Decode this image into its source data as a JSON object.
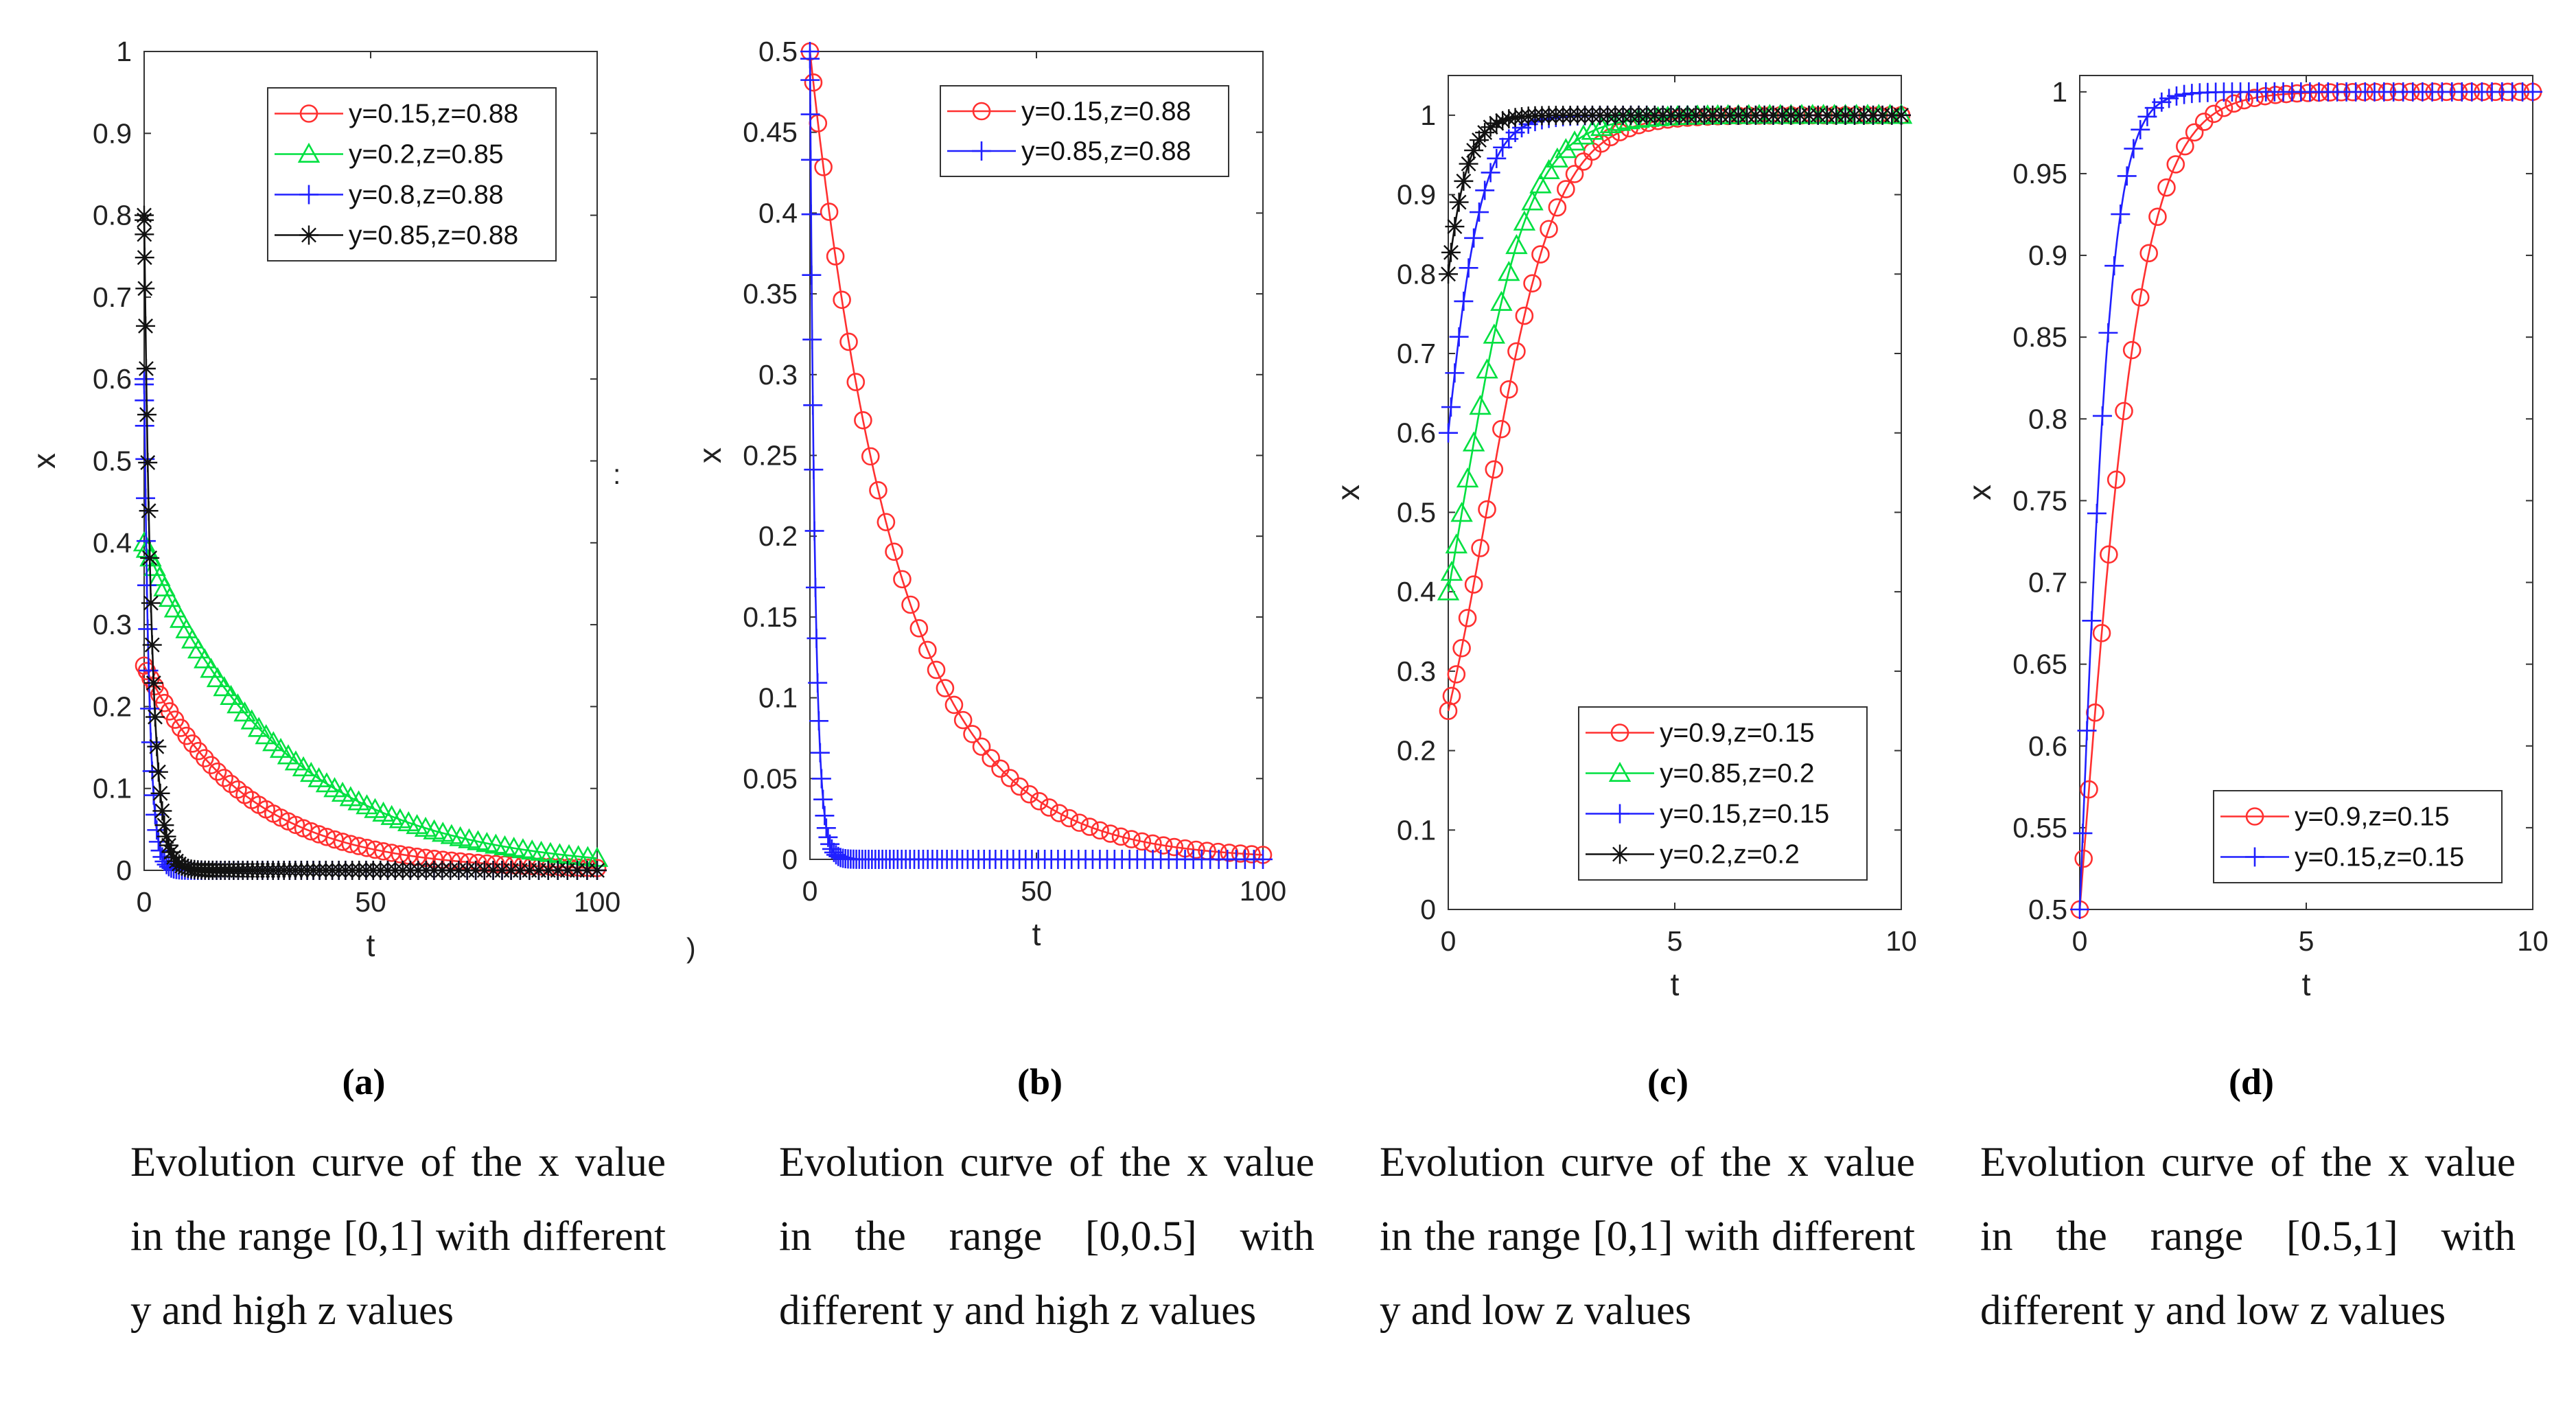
{
  "chart_data": [
    {
      "type": "line",
      "panel_label": "(a)",
      "caption": "Evolution curve of the x value in the range [0,1] with different y and high z values",
      "xlabel": "t",
      "ylabel": "x",
      "xlim": [
        0,
        100
      ],
      "ylim": [
        0,
        1
      ],
      "xticks": [
        0,
        50,
        100
      ],
      "xtick_labels": [
        "0",
        "50",
        "100"
      ],
      "yticks": [
        0,
        0.1,
        0.2,
        0.3,
        0.4,
        0.5,
        0.6,
        0.7,
        0.8,
        0.9,
        1
      ],
      "ytick_labels": [
        "0",
        "0.1",
        "0.2",
        "0.3",
        "0.4",
        "0.5",
        "0.6",
        "0.7",
        "0.8",
        "0.9",
        "1"
      ],
      "legend_position": "top-right",
      "series": [
        {
          "name": "y=0.15,z=0.88",
          "color": "#ff3030",
          "marker": "circle",
          "model": "exp",
          "x0": 0.25,
          "target": 0,
          "rate": 0.045,
          "t_end": 100,
          "n": 60
        },
        {
          "name": "y=0.2,z=0.85",
          "color": "#00e040",
          "marker": "triangle",
          "model": "exp",
          "x0": 0.4,
          "target": 0,
          "rate": 0.033,
          "t_end": 100,
          "n": 60
        },
        {
          "name": "y=0.8,z=0.88",
          "color": "#2020ff",
          "marker": "plus",
          "model": "exp",
          "x0": 0.6,
          "target": 0,
          "rate": 0.9,
          "t_end": 100,
          "n": 90
        },
        {
          "name": "y=0.85,z=0.88",
          "color": "#111111",
          "marker": "star",
          "model": "exp",
          "x0": 0.8,
          "target": 0,
          "rate": 0.6,
          "t_end": 100,
          "n": 90
        }
      ]
    },
    {
      "type": "line",
      "panel_label": "(b)",
      "caption": "Evolution curve of the x value in the range [0,0.5] with different y and high z values",
      "xlabel": "t",
      "ylabel": "x",
      "xlim": [
        0,
        100
      ],
      "ylim": [
        0,
        0.5
      ],
      "xticks": [
        0,
        50,
        100
      ],
      "xtick_labels": [
        "0",
        "50",
        "100"
      ],
      "yticks": [
        0,
        0.05,
        0.1,
        0.15,
        0.2,
        0.25,
        0.3,
        0.35,
        0.4,
        0.45,
        0.5
      ],
      "ytick_labels": [
        "0",
        "0.05",
        "0.1",
        "0.15",
        "0.2",
        "0.25",
        "0.3",
        "0.35",
        "0.4",
        "0.45",
        "0.5"
      ],
      "legend_position": "top-right",
      "series": [
        {
          "name": "y=0.15,z=0.88",
          "color": "#ff3030",
          "marker": "circle",
          "model": "exp",
          "x0": 0.5,
          "target": 0,
          "rate": 0.052,
          "t_end": 100,
          "n": 50
        },
        {
          "name": "y=0.85,z=0.88",
          "color": "#2020ff",
          "marker": "plus",
          "model": "exp",
          "x0": 0.5,
          "target": 0,
          "rate": 0.9,
          "t_end": 100,
          "n": 100
        }
      ]
    },
    {
      "type": "line",
      "panel_label": "(c)",
      "caption": "Evolution curve of the x value in the range [0,1] with different y and low z values",
      "xlabel": "t",
      "ylabel": "x",
      "xlim": [
        0,
        10
      ],
      "ylim": [
        0,
        1.05
      ],
      "xticks": [
        0,
        5,
        10
      ],
      "xtick_labels": [
        "0",
        "5",
        "10"
      ],
      "yticks": [
        0,
        0.1,
        0.2,
        0.3,
        0.4,
        0.5,
        0.6,
        0.7,
        0.8,
        0.9,
        1
      ],
      "ytick_labels": [
        "0",
        "0.1",
        "0.2",
        "0.3",
        "0.4",
        "0.5",
        "0.6",
        "0.7",
        "0.8",
        "0.9",
        "1"
      ],
      "legend_position": "bottom-right",
      "series": [
        {
          "name": "y=0.9,z=0.15",
          "color": "#ff3030",
          "marker": "circle",
          "model": "logistic",
          "x0": 0.25,
          "target": 1,
          "rate": 1.3,
          "t_end": 10,
          "n": 50
        },
        {
          "name": "y=0.85,z=0.2",
          "color": "#00e040",
          "marker": "triangle",
          "model": "logistic",
          "x0": 0.4,
          "target": 1,
          "rate": 1.35,
          "t_end": 10,
          "n": 50
        },
        {
          "name": "y=0.15,z=0.15",
          "color": "#2020ff",
          "marker": "plus",
          "model": "logistic",
          "x0": 0.6,
          "target": 1,
          "rate": 2.3,
          "t_end": 10,
          "n": 60
        },
        {
          "name": "y=0.2,z=0.2",
          "color": "#111111",
          "marker": "star",
          "model": "logistic",
          "x0": 0.8,
          "target": 1,
          "rate": 3.0,
          "t_end": 10,
          "n": 60
        }
      ]
    },
    {
      "type": "line",
      "panel_label": "(d)",
      "caption": "Evolution curve of the x value in the range [0.5,1] with different y and low z values",
      "xlabel": "t",
      "ylabel": "x",
      "xlim": [
        0,
        10
      ],
      "ylim": [
        0.5,
        1.01
      ],
      "xticks": [
        0,
        5,
        10
      ],
      "xtick_labels": [
        "0",
        "5",
        "10"
      ],
      "yticks": [
        0.5,
        0.55,
        0.6,
        0.65,
        0.7,
        0.75,
        0.8,
        0.85,
        0.9,
        0.95,
        1
      ],
      "ytick_labels": [
        "0.5",
        "0.55",
        "0.6",
        "0.65",
        "0.7",
        "0.75",
        "0.8",
        "0.85",
        "0.9",
        "0.95",
        "1"
      ],
      "legend_position": "bottom-right",
      "series": [
        {
          "name": "y=0.9,z=0.15",
          "color": "#ff3030",
          "marker": "circle",
          "model": "logistic",
          "x0": 0.5,
          "target": 1,
          "rate": 1.45,
          "t_end": 10,
          "n": 45
        },
        {
          "name": "y=0.15,z=0.15",
          "color": "#2020ff",
          "marker": "plus",
          "model": "logistic",
          "x0": 0.5,
          "target": 1,
          "rate": 2.8,
          "t_end": 10,
          "n": 55
        }
      ]
    }
  ],
  "stray_text": [
    ")",
    ":"
  ]
}
